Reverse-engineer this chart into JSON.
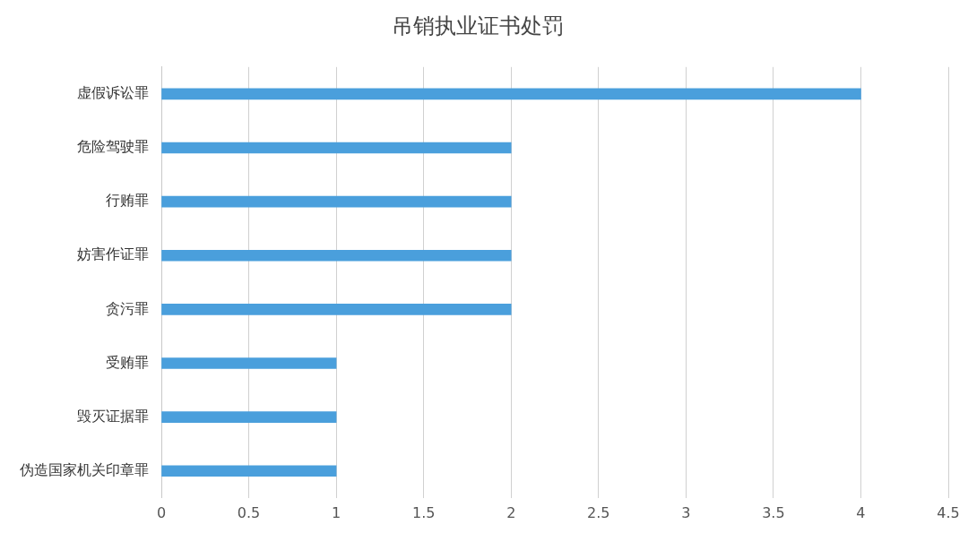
{
  "chart_data": {
    "type": "bar",
    "orientation": "horizontal",
    "title": "吊销执业证书处罚",
    "categories": [
      "虚假诉讼罪",
      "危险驾驶罪",
      "行贿罪",
      "妨害作证罪",
      "贪污罪",
      "受贿罪",
      "毁灭证据罪",
      "伪造国家机关印章罪"
    ],
    "values": [
      4,
      2,
      2,
      2,
      2,
      1,
      1,
      1
    ],
    "color": "#4a9fdc",
    "xlim": [
      0,
      4.5
    ],
    "xticks": [
      0,
      0.5,
      1,
      1.5,
      2,
      2.5,
      3,
      3.5,
      4,
      4.5
    ],
    "grid": "x",
    "legend": false
  }
}
